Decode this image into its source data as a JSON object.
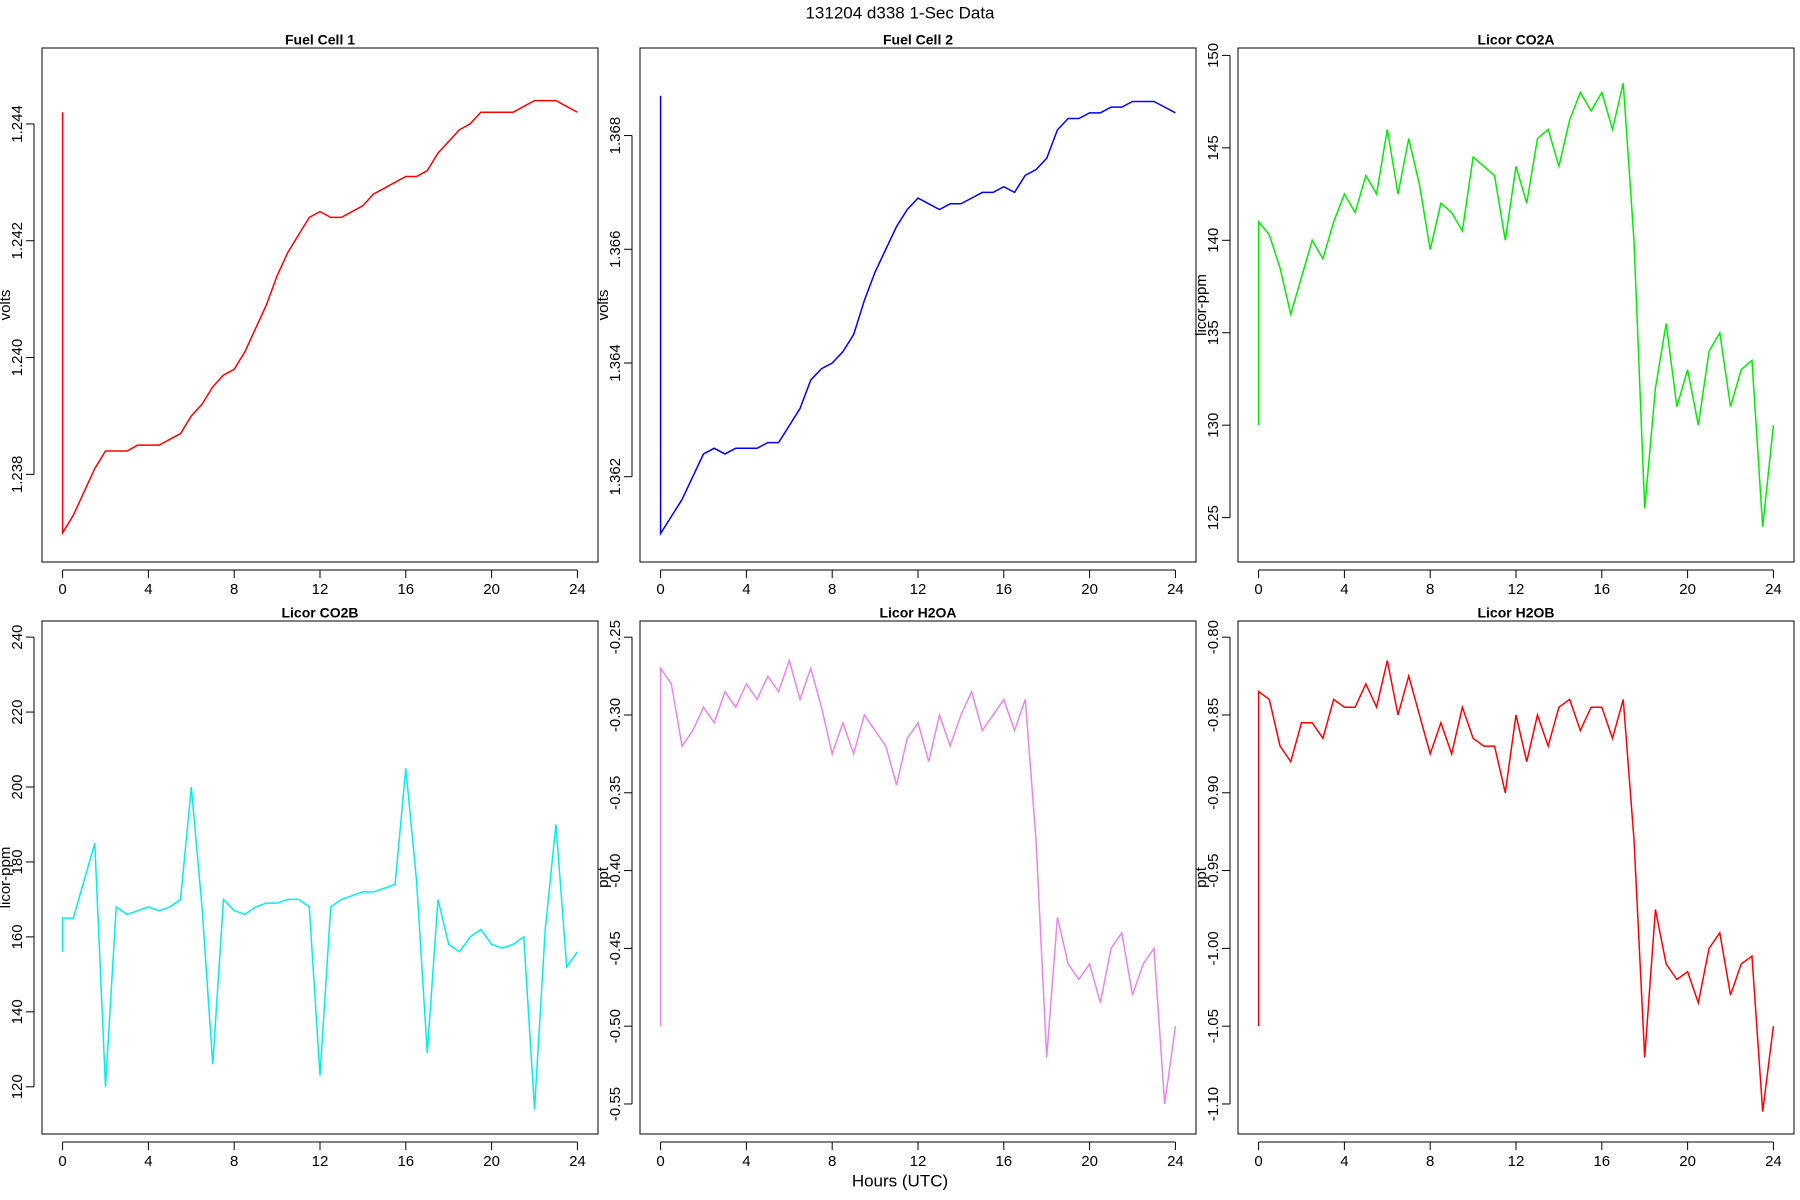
{
  "title": "131204   d338   1-Sec Data",
  "xlabel": "Hours (UTC)",
  "chart_data": [
    {
      "type": "line",
      "title": "Fuel Cell 1",
      "ylabel": "volts",
      "x": [
        0,
        0,
        0.5,
        1,
        1.5,
        2,
        2.5,
        3,
        3.5,
        4,
        4.5,
        5,
        5.5,
        6,
        6.5,
        7,
        7.5,
        8,
        8.5,
        9,
        9.5,
        10,
        10.5,
        11,
        11.5,
        12,
        12.5,
        13,
        13.5,
        14,
        14.5,
        15,
        15.5,
        16,
        16.5,
        17,
        17.5,
        18,
        18.5,
        19,
        19.5,
        20,
        20.5,
        21,
        21.5,
        22,
        22.5,
        23,
        23.5,
        24
      ],
      "series": [
        {
          "color": "#ff0000",
          "values": [
            1.2442,
            1.237,
            1.2373,
            1.2377,
            1.2381,
            1.2384,
            1.2384,
            1.2384,
            1.2385,
            1.2385,
            1.2385,
            1.2386,
            1.2387,
            1.239,
            1.2392,
            1.2395,
            1.2397,
            1.2398,
            1.2401,
            1.2405,
            1.2409,
            1.2414,
            1.2418,
            1.2421,
            1.2424,
            1.2425,
            1.2424,
            1.2424,
            1.2425,
            1.2426,
            1.2428,
            1.2429,
            1.243,
            1.2431,
            1.2431,
            1.2432,
            1.2435,
            1.2437,
            1.2439,
            1.244,
            1.2442,
            1.2442,
            1.2442,
            1.2442,
            1.2443,
            1.2444,
            1.2444,
            1.2444,
            1.2443,
            1.2442
          ]
        }
      ],
      "xlim": [
        -0.96,
        24.96
      ],
      "xticks": [
        0,
        4,
        8,
        12,
        16,
        20,
        24
      ],
      "ylim": [
        1.2365,
        1.2453
      ],
      "yticks": [
        1.238,
        {
          "value": 1.24,
          "label": "1.240"
        },
        1.242,
        1.244
      ]
    },
    {
      "type": "line",
      "title": "Fuel Cell 2",
      "ylabel": "volts",
      "x": [
        0,
        0,
        0.5,
        1,
        1.5,
        2,
        2.5,
        3,
        3.5,
        4,
        4.5,
        5,
        5.5,
        6,
        6.5,
        7,
        7.5,
        8,
        8.5,
        9,
        9.5,
        10,
        10.5,
        11,
        11.5,
        12,
        12.5,
        13,
        13.5,
        14,
        14.5,
        15,
        15.5,
        16,
        16.5,
        17,
        17.5,
        18,
        18.5,
        19,
        19.5,
        20,
        20.5,
        21,
        21.5,
        22,
        22.5,
        23,
        23.5,
        24
      ],
      "series": [
        {
          "color": "#0000ff",
          "values": [
            1.3687,
            1.361,
            1.3613,
            1.3616,
            1.362,
            1.3624,
            1.3625,
            1.3624,
            1.3625,
            1.3625,
            1.3625,
            1.3626,
            1.3626,
            1.3629,
            1.3632,
            1.3637,
            1.3639,
            1.364,
            1.3642,
            1.3645,
            1.3651,
            1.3656,
            1.366,
            1.3664,
            1.3667,
            1.3669,
            1.3668,
            1.3667,
            1.3668,
            1.3668,
            1.3669,
            1.367,
            1.367,
            1.3671,
            1.367,
            1.3673,
            1.3674,
            1.3676,
            1.3681,
            1.3683,
            1.3683,
            1.3684,
            1.3684,
            1.3685,
            1.3685,
            1.3686,
            1.3686,
            1.3686,
            1.3685,
            1.3684
          ]
        }
      ],
      "xlim": [
        -0.96,
        24.96
      ],
      "xticks": [
        0,
        4,
        8,
        12,
        16,
        20,
        24
      ],
      "ylim": [
        1.3605,
        1.36954
      ],
      "yticks": [
        1.362,
        1.364,
        1.366,
        1.368
      ]
    },
    {
      "type": "line",
      "title": "Licor CO2A",
      "ylabel": "licor-ppm",
      "x": [
        0,
        0,
        0.5,
        1,
        1.5,
        2,
        2.5,
        3,
        3.5,
        4,
        4.5,
        5,
        5.5,
        6,
        6.5,
        7,
        7.5,
        8,
        8.5,
        9,
        9.5,
        10,
        10.5,
        11,
        11.5,
        12,
        12.5,
        13,
        13.5,
        14,
        14.5,
        15,
        15.5,
        16,
        16.5,
        17,
        17.5,
        18,
        18.5,
        19,
        19.5,
        20,
        20.5,
        21,
        21.5,
        22,
        22.5,
        23,
        23.5,
        24
      ],
      "series": [
        {
          "color": "#00ee00",
          "values": [
            130,
            141,
            140.3,
            138.5,
            136,
            138,
            140,
            139,
            141,
            142.5,
            141.5,
            143.5,
            142.5,
            146,
            142.5,
            145.5,
            143,
            139.5,
            142,
            141.5,
            140.5,
            144.5,
            144,
            143.5,
            140,
            144,
            142,
            145.5,
            146,
            144,
            146.5,
            148,
            147,
            148,
            146,
            148.5,
            140,
            125.5,
            132,
            135.5,
            131,
            133,
            130,
            134,
            135,
            131,
            133,
            133.5,
            124.5,
            130
          ]
        }
      ],
      "xlim": [
        -0.96,
        24.96
      ],
      "xticks": [
        0,
        4,
        8,
        12,
        16,
        20,
        24
      ],
      "ylim": [
        122.6,
        150.4
      ],
      "yticks": [
        125,
        130,
        135,
        140,
        145,
        150
      ]
    },
    {
      "type": "line",
      "title": "Licor CO2B",
      "ylabel": "licor-ppm",
      "x": [
        0,
        0,
        0.5,
        1,
        1.5,
        2,
        2.5,
        3,
        3.5,
        4,
        4.5,
        5,
        5.5,
        6,
        6.5,
        7,
        7.5,
        8,
        8.5,
        9,
        9.5,
        10,
        10.5,
        11,
        11.5,
        12,
        12.5,
        13,
        13.5,
        14,
        14.5,
        15,
        15.5,
        16,
        16.5,
        17,
        17.5,
        18,
        18.5,
        19,
        19.5,
        20,
        20.5,
        21,
        21.5,
        22,
        22.5,
        23,
        23.5,
        24
      ],
      "series": [
        {
          "color": "#00eeee",
          "values": [
            156,
            165,
            165,
            175,
            185,
            120,
            168,
            166,
            167,
            168,
            167,
            168,
            170,
            200,
            168,
            126,
            170,
            167,
            166,
            168,
            169,
            169,
            170,
            170,
            168,
            123,
            168,
            170,
            171,
            172,
            172,
            173,
            174,
            205,
            175,
            129,
            170,
            158,
            156,
            160,
            162,
            158,
            157,
            158,
            160,
            114,
            162,
            190,
            152,
            156
          ]
        }
      ],
      "xlim": [
        -0.96,
        24.96
      ],
      "xticks": [
        0,
        4,
        8,
        12,
        16,
        20,
        24
      ],
      "ylim": [
        107.4,
        244.3
      ],
      "yticks": [
        120,
        140,
        160,
        180,
        200,
        220,
        240
      ]
    },
    {
      "type": "line",
      "title": "Licor H2OA",
      "ylabel": "ppt",
      "x": [
        0,
        0,
        0.5,
        1,
        1.5,
        2,
        2.5,
        3,
        3.5,
        4,
        4.5,
        5,
        5.5,
        6,
        6.5,
        7,
        7.5,
        8,
        8.5,
        9,
        9.5,
        10,
        10.5,
        11,
        11.5,
        12,
        12.5,
        13,
        13.5,
        14,
        14.5,
        15,
        15.5,
        16,
        16.5,
        17,
        17.5,
        18,
        18.5,
        19,
        19.5,
        20,
        20.5,
        21,
        21.5,
        22,
        22.5,
        23,
        23.5,
        24
      ],
      "series": [
        {
          "color": "#ee82ee",
          "values": [
            -0.5,
            -0.27,
            -0.28,
            -0.32,
            -0.31,
            -0.295,
            -0.305,
            -0.285,
            -0.295,
            -0.28,
            -0.29,
            -0.275,
            -0.285,
            -0.265,
            -0.29,
            -0.27,
            -0.295,
            -0.325,
            -0.305,
            -0.325,
            -0.3,
            -0.31,
            -0.32,
            -0.345,
            -0.315,
            -0.305,
            -0.33,
            -0.3,
            -0.32,
            -0.3,
            -0.285,
            -0.31,
            -0.3,
            -0.29,
            -0.31,
            -0.29,
            -0.38,
            -0.52,
            -0.43,
            -0.46,
            -0.47,
            -0.46,
            -0.485,
            -0.45,
            -0.44,
            -0.48,
            -0.46,
            -0.45,
            -0.55,
            -0.5
          ]
        }
      ],
      "xlim": [
        -0.96,
        24.96
      ],
      "xticks": [
        0,
        4,
        8,
        12,
        16,
        20,
        24
      ],
      "ylim": [
        -0.5693,
        -0.2396
      ],
      "yticks": [
        -0.25,
        {
          "value": -0.3,
          "label": "-0.30"
        },
        -0.35,
        {
          "value": -0.4,
          "label": "-0.40"
        },
        -0.45,
        {
          "value": -0.5,
          "label": "-0.50"
        },
        -0.55
      ]
    },
    {
      "type": "line",
      "title": "Licor H2OB",
      "ylabel": "ppt",
      "x": [
        0,
        0,
        0.5,
        1,
        1.5,
        2,
        2.5,
        3,
        3.5,
        4,
        4.5,
        5,
        5.5,
        6,
        6.5,
        7,
        7.5,
        8,
        8.5,
        9,
        9.5,
        10,
        10.5,
        11,
        11.5,
        12,
        12.5,
        13,
        13.5,
        14,
        14.5,
        15,
        15.5,
        16,
        16.5,
        17,
        17.5,
        18,
        18.5,
        19,
        19.5,
        20,
        20.5,
        21,
        21.5,
        22,
        22.5,
        23,
        23.5,
        24
      ],
      "series": [
        {
          "color": "#ff0000",
          "values": [
            -1.05,
            -0.835,
            -0.84,
            -0.87,
            -0.88,
            -0.855,
            -0.855,
            -0.865,
            -0.84,
            -0.845,
            -0.845,
            -0.83,
            -0.845,
            -0.815,
            -0.85,
            -0.825,
            -0.85,
            -0.875,
            -0.855,
            -0.875,
            -0.845,
            -0.865,
            -0.87,
            -0.87,
            -0.9,
            -0.85,
            -0.88,
            -0.85,
            -0.87,
            -0.845,
            -0.84,
            -0.86,
            -0.845,
            -0.845,
            -0.865,
            -0.84,
            -0.93,
            -1.07,
            -0.975,
            -1.01,
            -1.02,
            -1.015,
            -1.035,
            -1.0,
            -0.99,
            -1.03,
            -1.01,
            -1.005,
            -1.105,
            -1.05
          ]
        }
      ],
      "xlim": [
        -0.96,
        24.96
      ],
      "xticks": [
        0,
        4,
        8,
        12,
        16,
        20,
        24
      ],
      "ylim": [
        -1.1193,
        -0.7896
      ],
      "yticks": [
        {
          "value": -0.8,
          "label": "-0.80"
        },
        -0.85,
        {
          "value": -0.9,
          "label": "-0.90"
        },
        -0.95,
        {
          "value": -1.0,
          "label": "-1.00"
        },
        -1.05,
        {
          "value": -1.1,
          "label": "-1.10"
        }
      ]
    }
  ]
}
